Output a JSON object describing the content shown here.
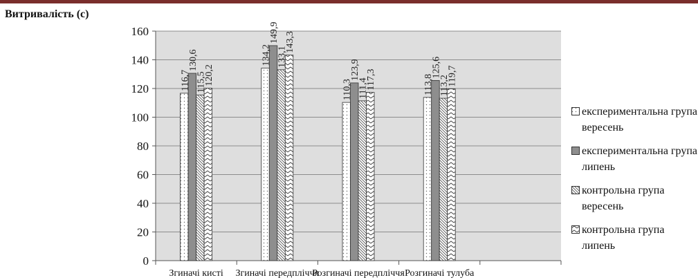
{
  "chart_data": {
    "type": "bar",
    "ylabel": "Витривалість (с)",
    "ylim": [
      0,
      160
    ],
    "yticks": [
      0,
      20,
      40,
      60,
      80,
      100,
      120,
      140,
      160
    ],
    "categories": [
      "Згиначі кисті",
      "Згиначі передпліччя",
      "Розгиначі передпліччя",
      "Розгиначі тулуба"
    ],
    "series": [
      {
        "name": "експериментальна група вересень",
        "values": [
          116.7,
          134.2,
          110.3,
          113.8
        ],
        "labels": [
          "116,7",
          "134,2",
          "110,3",
          "113,8"
        ],
        "pattern": "dots"
      },
      {
        "name": "експериментальна група липень",
        "values": [
          130.6,
          149.9,
          123.9,
          125.6
        ],
        "labels": [
          "130,6",
          "149,9",
          "123,9",
          "125,6"
        ],
        "pattern": "gray"
      },
      {
        "name": "контрольна група вересень",
        "values": [
          115.5,
          133.1,
          111.4,
          113.2
        ],
        "labels": [
          "115,5",
          "133,1",
          "111,4",
          "113,2"
        ],
        "pattern": "diagonal"
      },
      {
        "name": "контрольна група липень",
        "values": [
          120.2,
          143.3,
          117.3,
          119.7
        ],
        "labels": [
          "120,2",
          "143,3",
          "117,3",
          "119,7"
        ],
        "pattern": "zigzag"
      }
    ],
    "grid": true,
    "legend_position": "right"
  }
}
